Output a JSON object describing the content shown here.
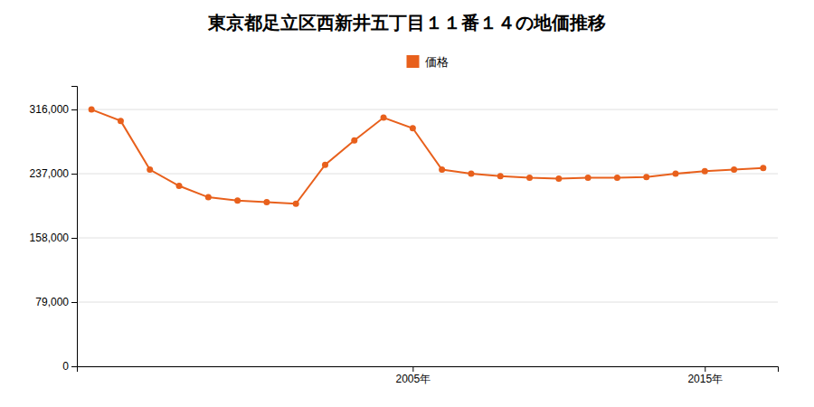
{
  "chart_data": {
    "type": "line",
    "title": "東京都足立区西新井五丁目１１番１４の地価推移",
    "x": [
      1994,
      1995,
      1996,
      1997,
      1998,
      1999,
      2000,
      2001,
      2002,
      2003,
      2004,
      2005,
      2006,
      2007,
      2008,
      2009,
      2010,
      2011,
      2012,
      2013,
      2014,
      2015,
      2016,
      2017
    ],
    "series": [
      {
        "name": "価格",
        "color": "#e8601c",
        "marker": "circle",
        "values": [
          316000,
          302000,
          242000,
          222000,
          208000,
          204000,
          202000,
          200000,
          248000,
          278000,
          306000,
          293000,
          242000,
          237000,
          234000,
          232000,
          231000,
          232000,
          232000,
          233000,
          237000,
          240000,
          242000,
          244000
        ]
      }
    ],
    "xlim": [
      1993.5,
      2017.5
    ],
    "xticks": [
      {
        "value": 2005,
        "label": "2005年"
      },
      {
        "value": 2015,
        "label": "2015年"
      }
    ],
    "ylim": [
      0,
      345000
    ],
    "yticks": [
      0,
      {
        "value": 79000,
        "label": "79,000"
      },
      {
        "value": 158000,
        "label": "158,000"
      },
      {
        "value": 237000,
        "label": "237,000"
      },
      {
        "value": 316000,
        "label": "316,000"
      }
    ],
    "grid": "y",
    "legend": "top"
  }
}
